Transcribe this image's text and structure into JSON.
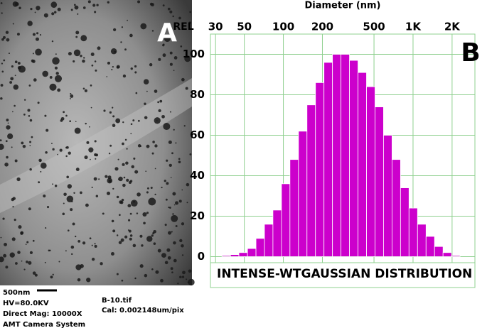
{
  "image_panel": {
    "label": "A",
    "scale_bar": "500nm",
    "info": [
      "HV=80.0KV",
      "Direct Mag: 10000X",
      "AMT Camera System"
    ],
    "file": [
      "B-10.tif",
      "Cal: 0.002148um/pix"
    ]
  },
  "chart_data": {
    "type": "histogram",
    "panel_label": "B",
    "x_label": "Diameter (nm)",
    "y_label": "REL",
    "annotation": "INTENSE-WTGAUSSIAN DISTRIBUTION",
    "color": "#cc00cc",
    "grid_color": "#8fd08f",
    "xscale": "log",
    "grid": true,
    "bins": [
      33.6,
      39.1,
      45.4,
      52.9,
      61.5,
      71.5,
      83.1,
      96.7,
      112.4,
      130.8,
      152.1,
      176.9,
      205.7,
      239.2,
      278.2,
      323.6,
      376.3,
      437.7,
      509,
      592,
      688.5,
      800.7,
      931,
      1083,
      1260,
      1465,
      1704,
      1981,
      2304
    ],
    "values": [
      0.5,
      1,
      2,
      4,
      9,
      16,
      23,
      36,
      48,
      62,
      75,
      86,
      96,
      100,
      100,
      97,
      91,
      84,
      74,
      60,
      48,
      34,
      24,
      16,
      10,
      5,
      2,
      0.5
    ],
    "xlim": [
      27.4,
      3000
    ],
    "ylim": [
      -3,
      110
    ],
    "xticks": [
      30,
      50,
      100,
      200,
      500,
      {
        "value": 1000,
        "label": "1K"
      },
      {
        "value": 2000,
        "label": "2K"
      }
    ],
    "yticks": [
      0,
      20,
      40,
      60,
      80,
      100
    ]
  }
}
